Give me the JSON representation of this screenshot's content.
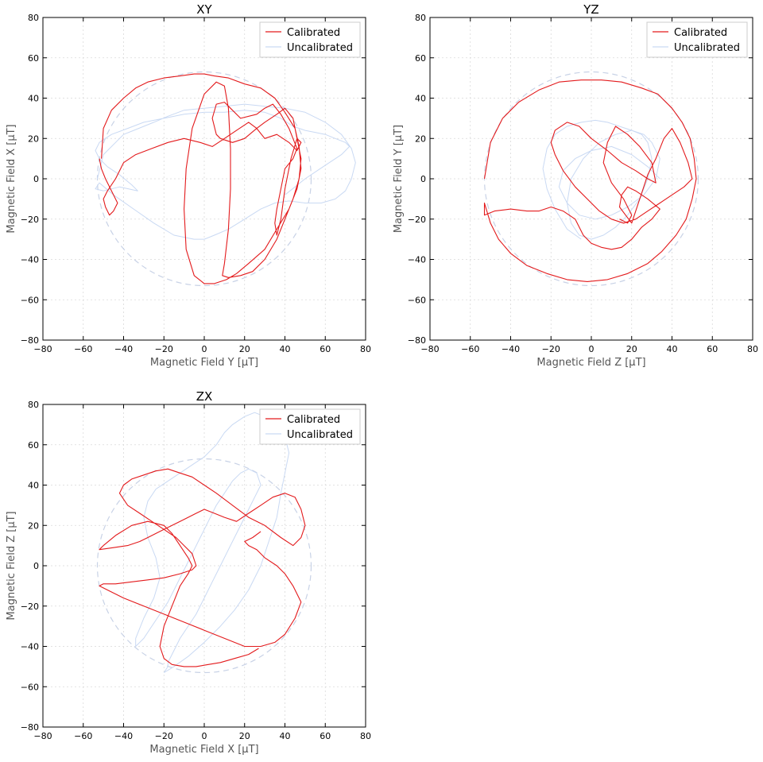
{
  "chart_data": [
    {
      "type": "line",
      "title": "XY",
      "xlabel": "Magnetic Field Y [μT]",
      "ylabel": "Magnetic Field X [μT]",
      "xlim": [
        -80,
        80
      ],
      "ylim": [
        -80,
        80
      ],
      "xticks": [
        -80,
        -60,
        -40,
        -20,
        0,
        20,
        40,
        60,
        80
      ],
      "yticks": [
        -80,
        -60,
        -40,
        -20,
        0,
        20,
        40,
        60,
        80
      ],
      "grid": true,
      "legend": "top-right",
      "reference_circle": {
        "cx": 0,
        "cy": 0,
        "r": 53,
        "color": "#c8d2e6",
        "style": "dashed"
      },
      "series": [
        {
          "name": "Uncalibrated",
          "color": "#c9d9f3",
          "x": [
            -53,
            -50,
            -44,
            -40,
            -35,
            -30,
            -25,
            -18,
            -10,
            0,
            10,
            20,
            30,
            40,
            50,
            60,
            68,
            73,
            75,
            73,
            70,
            65,
            58,
            50,
            42,
            35,
            28,
            20,
            12,
            5,
            0,
            -5,
            -15,
            -25,
            -35,
            -45,
            -52,
            -54,
            -50,
            -42,
            -33,
            -36,
            -42,
            -48,
            -52,
            -54,
            -52,
            -46,
            -38,
            -30,
            -20,
            -10,
            0,
            10,
            20,
            30,
            38,
            44,
            50,
            55,
            60,
            65,
            70,
            72,
            68,
            62,
            56,
            50,
            45,
            40
          ],
          "y": [
            0,
            12,
            18,
            22,
            24,
            26,
            28,
            31,
            34,
            35,
            36,
            37,
            36,
            35,
            33,
            28,
            22,
            15,
            8,
            0,
            -6,
            -10,
            -12,
            -12,
            -11,
            -12,
            -15,
            -20,
            -25,
            -28,
            -30,
            -30,
            -28,
            -22,
            -15,
            -8,
            -2,
            -5,
            -6,
            -4,
            -6,
            -3,
            2,
            6,
            10,
            14,
            18,
            22,
            25,
            28,
            30,
            32,
            33,
            33,
            34,
            33,
            30,
            26,
            24,
            23,
            22,
            20,
            18,
            16,
            12,
            8,
            4,
            0,
            -4,
            -8
          ]
        },
        {
          "name": "Calibrated",
          "color": "#e31a1c",
          "x": [
            -51,
            -50,
            -46,
            -40,
            -34,
            -28,
            -20,
            -12,
            -5,
            0,
            5,
            12,
            20,
            28,
            35,
            40,
            45,
            47,
            48,
            46,
            42,
            36,
            30,
            22,
            16,
            11,
            5,
            0,
            -5,
            -9,
            -10,
            -9,
            -6,
            0,
            6,
            10,
            12,
            13,
            13,
            12,
            10,
            9,
            12,
            18,
            24,
            30,
            36,
            40,
            44,
            47,
            48,
            46,
            44,
            40,
            36,
            30,
            26,
            20,
            14,
            8,
            6,
            4,
            6,
            10,
            14,
            18,
            26,
            30,
            34,
            38,
            42,
            46,
            44,
            40,
            38,
            36,
            35,
            36,
            38,
            40,
            43,
            46,
            48,
            46,
            42,
            36,
            30,
            26,
            22,
            16,
            10,
            4,
            -2,
            -10,
            -18,
            -26,
            -34,
            -40,
            -44,
            -48,
            -50,
            -49,
            -47,
            -45,
            -43,
            -46,
            -49,
            -51,
            -52
          ],
          "y": [
            10,
            25,
            34,
            40,
            45,
            48,
            50,
            51,
            52,
            52,
            51,
            50,
            47,
            45,
            40,
            33,
            25,
            16,
            5,
            -5,
            -15,
            -25,
            -35,
            -42,
            -47,
            -50,
            -52,
            -52,
            -48,
            -35,
            -15,
            5,
            25,
            42,
            48,
            46,
            35,
            15,
            -5,
            -25,
            -42,
            -48,
            -49,
            -48,
            -46,
            -40,
            -30,
            -20,
            -10,
            0,
            10,
            20,
            30,
            35,
            32,
            28,
            25,
            20,
            18,
            20,
            22,
            30,
            37,
            38,
            34,
            30,
            32,
            35,
            37,
            32,
            25,
            15,
            10,
            5,
            -5,
            -15,
            -22,
            -28,
            -20,
            -5,
            10,
            20,
            18,
            14,
            18,
            22,
            20,
            25,
            28,
            24,
            20,
            16,
            18,
            20,
            18,
            15,
            12,
            8,
            0,
            -6,
            -10,
            -14,
            -18,
            -16,
            -12,
            -6,
            0,
            5,
            10
          ]
        }
      ]
    },
    {
      "type": "line",
      "title": "YZ",
      "xlabel": "Magnetic Field Z [μT]",
      "ylabel": "Magnetic Field Y [μT]",
      "xlim": [
        -80,
        80
      ],
      "ylim": [
        -80,
        80
      ],
      "xticks": [
        -80,
        -60,
        -40,
        -20,
        0,
        20,
        40,
        60,
        80
      ],
      "yticks": [
        -80,
        -60,
        -40,
        -20,
        0,
        20,
        40,
        60,
        80
      ],
      "grid": true,
      "legend": "top-right",
      "reference_circle": {
        "cx": 0,
        "cy": 0,
        "r": 53,
        "color": "#c8d2e6",
        "style": "dashed"
      },
      "series": [
        {
          "name": "Uncalibrated",
          "color": "#c9d9f3",
          "x": [
            -5,
            -12,
            -18,
            -22,
            -24,
            -22,
            -18,
            -12,
            -5,
            2,
            8,
            14,
            20,
            25,
            28,
            30,
            28,
            24,
            18,
            12,
            6,
            0,
            -6,
            -10,
            -12,
            -10,
            -4,
            4,
            12,
            20,
            26,
            30,
            34,
            32,
            26,
            18,
            10,
            2,
            -6,
            -12,
            -16,
            -14,
            -8,
            0,
            10,
            20,
            28,
            34
          ],
          "y": [
            -30,
            -25,
            -15,
            -5,
            5,
            15,
            22,
            26,
            28,
            29,
            28,
            26,
            24,
            22,
            18,
            10,
            0,
            -10,
            -18,
            -24,
            -28,
            -30,
            -28,
            -22,
            -12,
            0,
            10,
            18,
            22,
            24,
            22,
            18,
            10,
            0,
            -8,
            -14,
            -18,
            -20,
            -18,
            -12,
            -4,
            4,
            10,
            14,
            16,
            12,
            6,
            0
          ]
        },
        {
          "name": "Calibrated",
          "color": "#e31a1c",
          "x": [
            -53,
            -50,
            -44,
            -36,
            -26,
            -16,
            -5,
            5,
            15,
            25,
            33,
            40,
            45,
            49,
            51,
            52,
            50,
            47,
            42,
            35,
            28,
            18,
            8,
            -2,
            -12,
            -22,
            -32,
            -40,
            -46,
            -50,
            -53,
            -53,
            -48,
            -40,
            -32,
            -26,
            -20,
            -14,
            -8,
            -4,
            0,
            5,
            10,
            15,
            20,
            25,
            30,
            34,
            28,
            22,
            18,
            15,
            14,
            17,
            20,
            24,
            28,
            32,
            36,
            40,
            44,
            48,
            50,
            46,
            40,
            34,
            28,
            22,
            16,
            10,
            4,
            -2,
            -8,
            -14,
            -18,
            -20,
            -18,
            -12,
            -6,
            0,
            8,
            15,
            22,
            28,
            32,
            30,
            24,
            18,
            12,
            8,
            6,
            10,
            16,
            20,
            18,
            14
          ],
          "y": [
            0,
            18,
            30,
            38,
            44,
            48,
            49,
            49,
            48,
            45,
            42,
            35,
            28,
            20,
            10,
            0,
            -10,
            -20,
            -28,
            -36,
            -42,
            -47,
            -50,
            -51,
            -50,
            -47,
            -43,
            -37,
            -30,
            -22,
            -12,
            -18,
            -16,
            -15,
            -16,
            -16,
            -14,
            -16,
            -20,
            -28,
            -32,
            -34,
            -35,
            -34,
            -30,
            -24,
            -20,
            -15,
            -10,
            -6,
            -4,
            -8,
            -14,
            -18,
            -22,
            -10,
            2,
            10,
            20,
            25,
            18,
            8,
            0,
            -4,
            -8,
            -12,
            -16,
            -20,
            -22,
            -20,
            -16,
            -10,
            -4,
            4,
            12,
            18,
            24,
            28,
            26,
            20,
            14,
            8,
            4,
            0,
            -2,
            8,
            16,
            22,
            26,
            18,
            8,
            -2,
            -10,
            -18,
            -22,
            -20
          ]
        }
      ]
    },
    {
      "type": "line",
      "title": "ZX",
      "xlabel": "Magnetic Field X [μT]",
      "ylabel": "Magnetic Field Z [μT]",
      "xlim": [
        -80,
        80
      ],
      "ylim": [
        -80,
        80
      ],
      "xticks": [
        -80,
        -60,
        -40,
        -20,
        0,
        20,
        40,
        60,
        80
      ],
      "yticks": [
        -80,
        -60,
        -40,
        -20,
        0,
        20,
        40,
        60,
        80
      ],
      "grid": true,
      "legend": "top-right",
      "reference_circle": {
        "cx": 0,
        "cy": 0,
        "r": 53,
        "color": "#c8d2e6",
        "style": "dashed"
      },
      "series": [
        {
          "name": "Uncalibrated",
          "color": "#c9d9f3",
          "x": [
            -20,
            -15,
            -8,
            0,
            8,
            15,
            22,
            28,
            32,
            36,
            38,
            40,
            42,
            40,
            36,
            30,
            25,
            20,
            14,
            10,
            6,
            0,
            -6,
            -12,
            -18,
            -24,
            -28,
            -30,
            -28,
            -24,
            -22,
            -25,
            -30,
            -34,
            -34,
            -30,
            -26,
            -22,
            -18,
            -14,
            -10,
            -6,
            -2,
            2,
            6,
            10,
            14,
            18,
            22,
            26,
            28,
            24,
            20,
            16,
            12,
            8,
            4,
            0,
            -4,
            -8,
            -12,
            -14,
            -16,
            -18,
            -18,
            -20
          ],
          "y": [
            -53,
            -50,
            -45,
            -38,
            -30,
            -22,
            -12,
            0,
            12,
            24,
            36,
            46,
            56,
            64,
            70,
            74,
            76,
            74,
            70,
            66,
            60,
            54,
            50,
            46,
            42,
            38,
            32,
            24,
            14,
            4,
            -6,
            -16,
            -26,
            -36,
            -40,
            -36,
            -30,
            -24,
            -18,
            -10,
            -2,
            6,
            14,
            22,
            30,
            36,
            42,
            46,
            48,
            46,
            40,
            32,
            24,
            16,
            8,
            0,
            -8,
            -16,
            -24,
            -30,
            -36,
            -40,
            -44,
            -48,
            -50,
            -53
          ]
        },
        {
          "name": "Calibrated",
          "color": "#e31a1c",
          "x": [
            27,
            22,
            15,
            8,
            2,
            -4,
            -10,
            -16,
            -20,
            -22,
            -20,
            -16,
            -12,
            -8,
            -6,
            -8,
            -12,
            -16,
            -20,
            -28,
            -36,
            -44,
            -50,
            -52,
            -45,
            -38,
            -32,
            -28,
            -24,
            -20,
            -16,
            -12,
            -8,
            -4,
            0,
            5,
            10,
            16,
            22,
            28,
            34,
            40,
            45,
            48,
            50,
            48,
            44,
            38,
            30,
            22,
            14,
            6,
            0,
            -6,
            -12,
            -18,
            -24,
            -30,
            -36,
            -40,
            -42,
            -38,
            -32,
            -26,
            -20,
            -14,
            -10,
            -6,
            -4,
            -6,
            -12,
            -20,
            -28,
            -36,
            -44,
            -50,
            -52,
            -48,
            -40,
            -30,
            -20,
            -10,
            0,
            10,
            20,
            28,
            35,
            40,
            45,
            48,
            44,
            40,
            36,
            30,
            26,
            22,
            20,
            24,
            28
          ],
          "y": [
            -41,
            -44,
            -46,
            -48,
            -49,
            -50,
            -50,
            -49,
            -46,
            -40,
            -30,
            -20,
            -10,
            -4,
            0,
            4,
            10,
            16,
            20,
            22,
            20,
            15,
            10,
            8,
            9,
            10,
            12,
            14,
            16,
            18,
            20,
            22,
            24,
            26,
            28,
            26,
            24,
            22,
            26,
            30,
            34,
            36,
            34,
            28,
            20,
            14,
            10,
            14,
            20,
            24,
            30,
            36,
            40,
            44,
            46,
            48,
            47,
            45,
            43,
            40,
            36,
            30,
            26,
            22,
            18,
            14,
            10,
            6,
            0,
            -2,
            -4,
            -6,
            -7,
            -8,
            -9,
            -9,
            -10,
            -12,
            -16,
            -20,
            -24,
            -28,
            -32,
            -36,
            -40,
            -40,
            -38,
            -34,
            -26,
            -18,
            -10,
            -4,
            0,
            4,
            8,
            10,
            12,
            14,
            17
          ]
        }
      ]
    }
  ]
}
